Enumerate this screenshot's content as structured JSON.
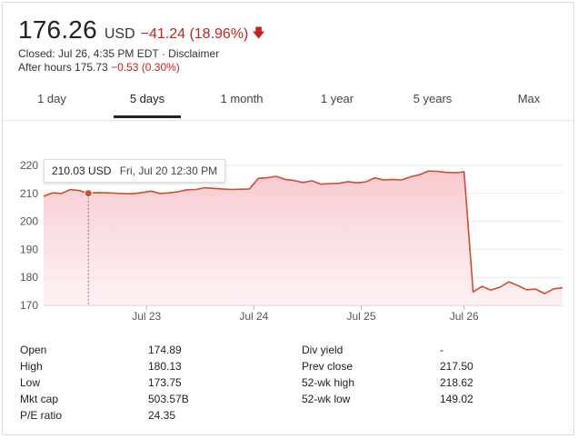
{
  "quote": {
    "price": "176.26",
    "currency": "USD",
    "change": "−41.24 (18.96%)",
    "closed_text": "Closed: Jul 26, 4:35 PM EDT · Disclaimer",
    "after_hours_label": "After hours 175.73",
    "after_hours_change": "−0.53 (0.30%)"
  },
  "tabs": [
    {
      "label": "1 day"
    },
    {
      "label": "5 days",
      "active": true
    },
    {
      "label": "1 month"
    },
    {
      "label": "1 year"
    },
    {
      "label": "5 years"
    },
    {
      "label": "Max"
    }
  ],
  "tooltip": {
    "value": "210.03 USD",
    "date": "Fri, Jul 20 12:30 PM"
  },
  "chart_data": {
    "type": "area",
    "x_tick_labels": [
      "Jul 23",
      "Jul 24",
      "Jul 25",
      "Jul 26"
    ],
    "y_tick_labels": [
      "220",
      "210",
      "200",
      "190",
      "180",
      "170"
    ],
    "ylim": [
      170,
      220
    ],
    "x_index_range": [
      0,
      58
    ],
    "x_tick_positions": [
      11.5,
      23.5,
      35.5,
      47
    ],
    "highlight_index": 5,
    "line_color": "#d44a32",
    "fill_color": "#fbe5e8",
    "values": [
      209.0,
      210.2,
      210.0,
      211.4,
      211.0,
      210.03,
      210.3,
      210.2,
      210.1,
      209.9,
      209.9,
      210.3,
      210.8,
      210.0,
      210.2,
      210.6,
      211.3,
      211.4,
      212.0,
      211.8,
      211.6,
      211.4,
      211.5,
      211.6,
      215.4,
      215.6,
      216.1,
      215.0,
      214.6,
      213.9,
      214.5,
      213.3,
      213.5,
      213.6,
      214.2,
      213.8,
      214.1,
      215.6,
      214.8,
      215.0,
      214.8,
      215.9,
      216.7,
      218.0,
      217.9,
      217.5,
      217.4,
      217.7,
      174.8,
      176.8,
      175.5,
      176.5,
      178.4,
      177.1,
      175.6,
      175.8,
      174.2,
      175.9,
      176.3
    ]
  },
  "stats": {
    "left": [
      {
        "label": "Open",
        "value": "174.89"
      },
      {
        "label": "High",
        "value": "180.13"
      },
      {
        "label": "Low",
        "value": "173.75"
      },
      {
        "label": "Mkt cap",
        "value": "503.57B"
      },
      {
        "label": "P/E ratio",
        "value": "24.35"
      }
    ],
    "right": [
      {
        "label": "Div yield",
        "value": "-"
      },
      {
        "label": "Prev close",
        "value": "217.50"
      },
      {
        "label": "52-wk high",
        "value": "218.62"
      },
      {
        "label": "52-wk low",
        "value": "149.02"
      }
    ]
  },
  "icons": {
    "change_direction": "arrow-down-icon"
  }
}
